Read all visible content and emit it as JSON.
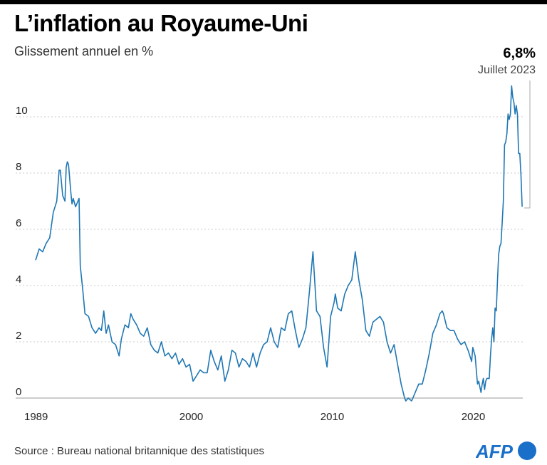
{
  "header": {
    "title": "L’inflation au Royaume-Uni",
    "subtitle": "Glissement annuel en %"
  },
  "annotation": {
    "value": "6,8%",
    "date": "Juillet 2023"
  },
  "footer": {
    "source": "Source : Bureau national britannique des statistiques",
    "logo": "AFP"
  },
  "colors": {
    "line": "#1f77b4",
    "grid": "#bbbbbb",
    "logo": "#1a6fc9"
  },
  "chart_data": {
    "type": "line",
    "title": "L’inflation au Royaume-Uni",
    "subtitle": "Glissement annuel en %",
    "xlabel": "",
    "ylabel": "",
    "xlim": [
      "1989-01",
      "2023-07"
    ],
    "ylim": [
      0,
      11.5
    ],
    "grid": true,
    "y_ticks": [
      "0",
      "2",
      "4",
      "6",
      "8",
      "10"
    ],
    "x_ticks": [
      "1989",
      "2000",
      "2010",
      "2020"
    ],
    "series": [
      {
        "points": [
          [
            "1989-01",
            4.9
          ],
          [
            "1989-04",
            5.3
          ],
          [
            "1989-07",
            5.2
          ],
          [
            "1989-10",
            5.5
          ],
          [
            "1990-01",
            5.7
          ],
          [
            "1990-04",
            6.6
          ],
          [
            "1990-07",
            7.0
          ],
          [
            "1990-09",
            8.1
          ],
          [
            "1990-10",
            8.1
          ],
          [
            "1990-12",
            7.2
          ],
          [
            "1991-02",
            7.0
          ],
          [
            "1991-03",
            8.2
          ],
          [
            "1991-04",
            8.4
          ],
          [
            "1991-05",
            8.3
          ],
          [
            "1991-07",
            7.3
          ],
          [
            "1991-08",
            6.9
          ],
          [
            "1991-09",
            7.1
          ],
          [
            "1991-11",
            6.8
          ],
          [
            "1992-02",
            7.1
          ],
          [
            "1992-03",
            4.7
          ],
          [
            "1992-05",
            3.9
          ],
          [
            "1992-07",
            3.0
          ],
          [
            "1992-10",
            2.9
          ],
          [
            "1993-01",
            2.5
          ],
          [
            "1993-04",
            2.3
          ],
          [
            "1993-07",
            2.5
          ],
          [
            "1993-09",
            2.4
          ],
          [
            "1993-11",
            3.1
          ],
          [
            "1994-01",
            2.3
          ],
          [
            "1994-03",
            2.6
          ],
          [
            "1994-06",
            2.0
          ],
          [
            "1994-09",
            1.9
          ],
          [
            "1994-12",
            1.5
          ],
          [
            "1995-02",
            2.1
          ],
          [
            "1995-05",
            2.6
          ],
          [
            "1995-08",
            2.5
          ],
          [
            "1995-10",
            3.0
          ],
          [
            "1995-12",
            2.8
          ],
          [
            "1996-03",
            2.6
          ],
          [
            "1996-06",
            2.3
          ],
          [
            "1996-09",
            2.2
          ],
          [
            "1996-12",
            2.5
          ],
          [
            "1997-03",
            1.9
          ],
          [
            "1997-06",
            1.7
          ],
          [
            "1997-09",
            1.6
          ],
          [
            "1997-12",
            2.0
          ],
          [
            "1998-03",
            1.5
          ],
          [
            "1998-06",
            1.6
          ],
          [
            "1998-09",
            1.4
          ],
          [
            "1998-12",
            1.6
          ],
          [
            "1999-03",
            1.2
          ],
          [
            "1999-06",
            1.4
          ],
          [
            "1999-09",
            1.1
          ],
          [
            "1999-12",
            1.2
          ],
          [
            "2000-03",
            0.6
          ],
          [
            "2000-06",
            0.8
          ],
          [
            "2000-09",
            1.0
          ],
          [
            "2000-12",
            0.9
          ],
          [
            "2001-03",
            0.9
          ],
          [
            "2001-06",
            1.7
          ],
          [
            "2001-09",
            1.3
          ],
          [
            "2001-12",
            1.0
          ],
          [
            "2002-03",
            1.5
          ],
          [
            "2002-06",
            0.6
          ],
          [
            "2002-09",
            1.0
          ],
          [
            "2002-12",
            1.7
          ],
          [
            "2003-03",
            1.6
          ],
          [
            "2003-06",
            1.1
          ],
          [
            "2003-09",
            1.4
          ],
          [
            "2003-12",
            1.3
          ],
          [
            "2004-03",
            1.1
          ],
          [
            "2004-06",
            1.6
          ],
          [
            "2004-09",
            1.1
          ],
          [
            "2004-12",
            1.6
          ],
          [
            "2005-03",
            1.9
          ],
          [
            "2005-06",
            2.0
          ],
          [
            "2005-09",
            2.5
          ],
          [
            "2005-12",
            2.0
          ],
          [
            "2006-03",
            1.8
          ],
          [
            "2006-06",
            2.5
          ],
          [
            "2006-09",
            2.4
          ],
          [
            "2006-12",
            3.0
          ],
          [
            "2007-03",
            3.1
          ],
          [
            "2007-06",
            2.4
          ],
          [
            "2007-09",
            1.8
          ],
          [
            "2007-12",
            2.1
          ],
          [
            "2008-03",
            2.5
          ],
          [
            "2008-06",
            3.8
          ],
          [
            "2008-09",
            5.2
          ],
          [
            "2008-12",
            3.1
          ],
          [
            "2009-03",
            2.9
          ],
          [
            "2009-06",
            1.8
          ],
          [
            "2009-09",
            1.1
          ],
          [
            "2009-12",
            2.9
          ],
          [
            "2010-03",
            3.4
          ],
          [
            "2010-04",
            3.7
          ],
          [
            "2010-06",
            3.2
          ],
          [
            "2010-09",
            3.1
          ],
          [
            "2010-12",
            3.7
          ],
          [
            "2011-03",
            4.0
          ],
          [
            "2011-06",
            4.2
          ],
          [
            "2011-09",
            5.2
          ],
          [
            "2011-12",
            4.2
          ],
          [
            "2012-03",
            3.5
          ],
          [
            "2012-06",
            2.4
          ],
          [
            "2012-09",
            2.2
          ],
          [
            "2012-12",
            2.7
          ],
          [
            "2013-03",
            2.8
          ],
          [
            "2013-06",
            2.9
          ],
          [
            "2013-09",
            2.7
          ],
          [
            "2013-12",
            2.0
          ],
          [
            "2014-03",
            1.6
          ],
          [
            "2014-06",
            1.9
          ],
          [
            "2014-09",
            1.2
          ],
          [
            "2014-12",
            0.5
          ],
          [
            "2015-03",
            0.0
          ],
          [
            "2015-04",
            -0.1
          ],
          [
            "2015-06",
            0.0
          ],
          [
            "2015-09",
            -0.1
          ],
          [
            "2015-12",
            0.2
          ],
          [
            "2016-03",
            0.5
          ],
          [
            "2016-06",
            0.5
          ],
          [
            "2016-09",
            1.0
          ],
          [
            "2016-12",
            1.6
          ],
          [
            "2017-03",
            2.3
          ],
          [
            "2017-06",
            2.6
          ],
          [
            "2017-09",
            3.0
          ],
          [
            "2017-11",
            3.1
          ],
          [
            "2017-12",
            3.0
          ],
          [
            "2018-03",
            2.5
          ],
          [
            "2018-06",
            2.4
          ],
          [
            "2018-09",
            2.4
          ],
          [
            "2018-12",
            2.1
          ],
          [
            "2019-03",
            1.9
          ],
          [
            "2019-06",
            2.0
          ],
          [
            "2019-09",
            1.7
          ],
          [
            "2019-12",
            1.3
          ],
          [
            "2020-01",
            1.8
          ],
          [
            "2020-03",
            1.5
          ],
          [
            "2020-05",
            0.5
          ],
          [
            "2020-06",
            0.6
          ],
          [
            "2020-08",
            0.2
          ],
          [
            "2020-09",
            0.5
          ],
          [
            "2020-10",
            0.7
          ],
          [
            "2020-11",
            0.3
          ],
          [
            "2020-12",
            0.6
          ],
          [
            "2021-01",
            0.7
          ],
          [
            "2021-03",
            0.7
          ],
          [
            "2021-04",
            1.5
          ],
          [
            "2021-05",
            2.1
          ],
          [
            "2021-06",
            2.5
          ],
          [
            "2021-07",
            2.0
          ],
          [
            "2021-08",
            3.2
          ],
          [
            "2021-09",
            3.1
          ],
          [
            "2021-10",
            4.2
          ],
          [
            "2021-11",
            5.1
          ],
          [
            "2021-12",
            5.4
          ],
          [
            "2022-01",
            5.5
          ],
          [
            "2022-02",
            6.2
          ],
          [
            "2022-03",
            7.0
          ],
          [
            "2022-04",
            9.0
          ],
          [
            "2022-05",
            9.1
          ],
          [
            "2022-06",
            9.4
          ],
          [
            "2022-07",
            10.1
          ],
          [
            "2022-08",
            9.9
          ],
          [
            "2022-09",
            10.1
          ],
          [
            "2022-10",
            11.1
          ],
          [
            "2022-11",
            10.7
          ],
          [
            "2022-12",
            10.5
          ],
          [
            "2023-01",
            10.1
          ],
          [
            "2023-02",
            10.4
          ],
          [
            "2023-03",
            10.1
          ],
          [
            "2023-04",
            8.7
          ],
          [
            "2023-05",
            8.7
          ],
          [
            "2023-06",
            7.9
          ],
          [
            "2023-07",
            6.8
          ]
        ]
      }
    ]
  }
}
